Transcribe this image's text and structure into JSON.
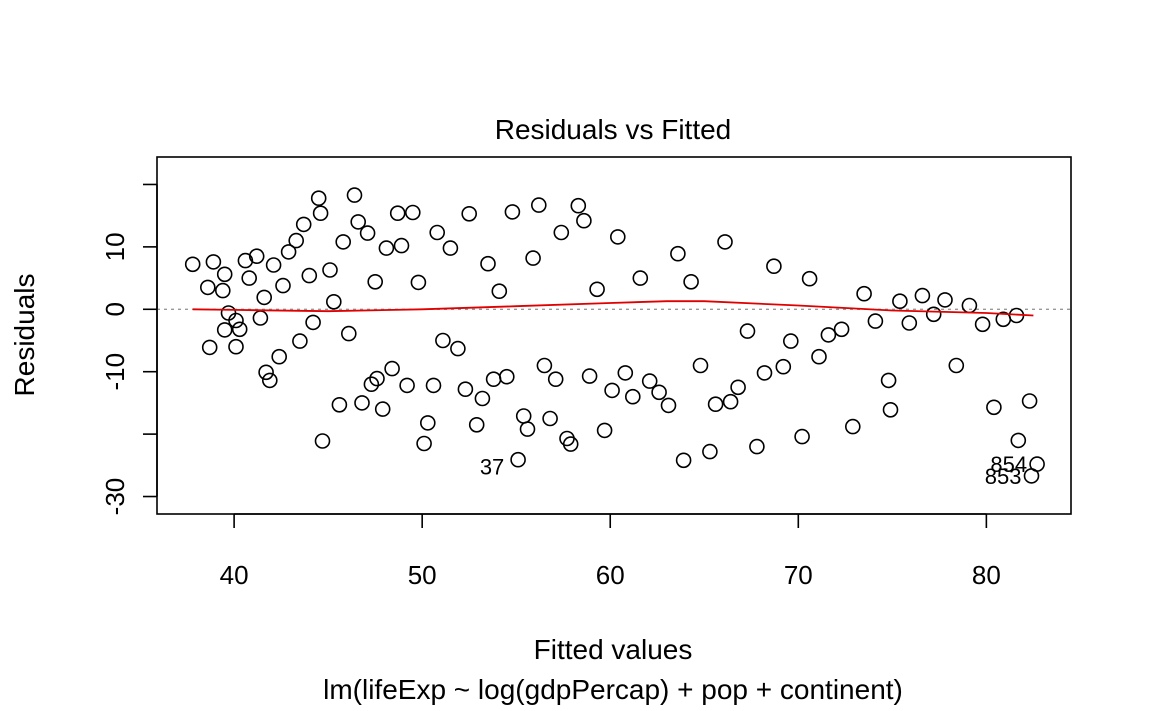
{
  "chart_data": {
    "type": "scatter",
    "title": "Residuals vs Fitted",
    "xlabel": "Fitted values",
    "ylabel": "Residuals",
    "subtitle": "lm(lifeExp ~ log(gdpPercap) + pop + continent)",
    "xlim": [
      35.9,
      84.5
    ],
    "ylim": [
      -32.8,
      24.4
    ],
    "x_ticks": [
      40,
      50,
      60,
      70,
      80
    ],
    "y_ticks": [
      -30,
      -20,
      -10,
      0,
      10,
      20
    ],
    "y_tick_labels": [
      "-30",
      "",
      "-10",
      "0",
      "10",
      ""
    ],
    "reference_line": {
      "y": 0,
      "style": "dotted",
      "color": "#999999"
    },
    "smooth_line": {
      "color": "#e00000",
      "points": [
        [
          37.8,
          0.0
        ],
        [
          40,
          -0.1
        ],
        [
          45,
          -0.3
        ],
        [
          50,
          0.0
        ],
        [
          55,
          0.5
        ],
        [
          60,
          1.0
        ],
        [
          63,
          1.3
        ],
        [
          65,
          1.3
        ],
        [
          70,
          0.6
        ],
        [
          75,
          -0.2
        ],
        [
          80,
          -0.6
        ],
        [
          82.5,
          -1.0
        ]
      ]
    },
    "labeled_points": [
      {
        "label": "37",
        "x": 54.9,
        "y": -25.2
      },
      {
        "label": "854",
        "x": 82.7,
        "y": -24.8
      },
      {
        "label": "853",
        "x": 82.4,
        "y": -26.7
      }
    ],
    "series": [
      {
        "points": [
          [
            37.8,
            7.2
          ],
          [
            38.6,
            3.5
          ],
          [
            38.7,
            -6.1
          ],
          [
            38.9,
            7.6
          ],
          [
            39.4,
            3.0
          ],
          [
            39.5,
            5.6
          ],
          [
            39.5,
            -3.3
          ],
          [
            39.7,
            -0.6
          ],
          [
            40.1,
            -1.8
          ],
          [
            40.1,
            -6.0
          ],
          [
            40.3,
            -3.2
          ],
          [
            40.6,
            7.8
          ],
          [
            40.8,
            5.0
          ],
          [
            41.2,
            8.5
          ],
          [
            41.4,
            -1.4
          ],
          [
            41.6,
            1.9
          ],
          [
            41.7,
            -10.1
          ],
          [
            41.9,
            -11.4
          ],
          [
            42.1,
            7.1
          ],
          [
            42.4,
            -7.6
          ],
          [
            42.6,
            3.8
          ],
          [
            42.9,
            9.2
          ],
          [
            43.3,
            11.0
          ],
          [
            43.5,
            -5.1
          ],
          [
            43.7,
            13.6
          ],
          [
            44.0,
            5.4
          ],
          [
            44.2,
            -2.1
          ],
          [
            44.5,
            17.8
          ],
          [
            44.6,
            15.4
          ],
          [
            44.7,
            -21.1
          ],
          [
            45.1,
            6.3
          ],
          [
            45.3,
            1.2
          ],
          [
            45.6,
            -15.3
          ],
          [
            45.8,
            10.8
          ],
          [
            46.1,
            -3.9
          ],
          [
            46.4,
            18.3
          ],
          [
            46.6,
            14.0
          ],
          [
            46.8,
            -15.0
          ],
          [
            47.1,
            12.2
          ],
          [
            47.3,
            -12.0
          ],
          [
            47.5,
            4.4
          ],
          [
            47.6,
            -11.1
          ],
          [
            47.9,
            -16.0
          ],
          [
            48.1,
            9.8
          ],
          [
            48.4,
            -9.5
          ],
          [
            48.7,
            15.4
          ],
          [
            48.9,
            10.2
          ],
          [
            49.2,
            -12.2
          ],
          [
            49.5,
            15.5
          ],
          [
            49.8,
            4.3
          ],
          [
            50.1,
            -21.5
          ],
          [
            50.3,
            -18.2
          ],
          [
            50.6,
            -12.2
          ],
          [
            50.8,
            12.3
          ],
          [
            51.1,
            -5.0
          ],
          [
            51.5,
            9.8
          ],
          [
            51.9,
            -6.3
          ],
          [
            52.3,
            -12.8
          ],
          [
            52.5,
            15.3
          ],
          [
            52.9,
            -18.5
          ],
          [
            53.2,
            -14.3
          ],
          [
            53.5,
            7.3
          ],
          [
            53.8,
            -11.2
          ],
          [
            54.1,
            2.9
          ],
          [
            54.5,
            -10.8
          ],
          [
            54.8,
            15.6
          ],
          [
            55.1,
            -24.1
          ],
          [
            55.4,
            -17.1
          ],
          [
            55.6,
            -19.2
          ],
          [
            55.9,
            8.2
          ],
          [
            56.2,
            16.7
          ],
          [
            56.5,
            -9.0
          ],
          [
            56.8,
            -17.5
          ],
          [
            57.1,
            -11.2
          ],
          [
            57.4,
            12.3
          ],
          [
            57.7,
            -20.7
          ],
          [
            57.9,
            -21.6
          ],
          [
            58.3,
            16.6
          ],
          [
            58.6,
            14.2
          ],
          [
            58.9,
            -10.7
          ],
          [
            59.3,
            3.2
          ],
          [
            59.7,
            -19.4
          ],
          [
            60.1,
            -13.0
          ],
          [
            60.4,
            11.6
          ],
          [
            60.8,
            -10.2
          ],
          [
            61.2,
            -14.0
          ],
          [
            61.6,
            5.0
          ],
          [
            62.1,
            -11.5
          ],
          [
            62.6,
            -13.3
          ],
          [
            63.1,
            -15.4
          ],
          [
            63.6,
            8.9
          ],
          [
            63.9,
            -24.2
          ],
          [
            64.3,
            4.4
          ],
          [
            64.8,
            -9.0
          ],
          [
            65.3,
            -22.8
          ],
          [
            65.6,
            -15.2
          ],
          [
            66.1,
            10.8
          ],
          [
            66.4,
            -14.8
          ],
          [
            66.8,
            -12.5
          ],
          [
            67.3,
            -3.5
          ],
          [
            67.8,
            -22.0
          ],
          [
            68.2,
            -10.2
          ],
          [
            68.7,
            6.9
          ],
          [
            69.2,
            -9.2
          ],
          [
            69.6,
            -5.1
          ],
          [
            70.2,
            -20.4
          ],
          [
            70.6,
            4.9
          ],
          [
            71.1,
            -7.6
          ],
          [
            71.6,
            -4.1
          ],
          [
            72.3,
            -3.2
          ],
          [
            72.9,
            -18.8
          ],
          [
            73.5,
            2.5
          ],
          [
            74.1,
            -1.9
          ],
          [
            74.8,
            -11.4
          ],
          [
            74.9,
            -16.1
          ],
          [
            75.4,
            1.3
          ],
          [
            75.9,
            -2.2
          ],
          [
            76.6,
            2.2
          ],
          [
            77.2,
            -0.8
          ],
          [
            77.8,
            1.5
          ],
          [
            78.4,
            -9.0
          ],
          [
            79.1,
            0.6
          ],
          [
            79.8,
            -2.4
          ],
          [
            80.4,
            -15.7
          ],
          [
            80.9,
            -1.6
          ],
          [
            81.6,
            -1.0
          ],
          [
            81.7,
            -21.0
          ],
          [
            82.3,
            -14.7
          ],
          [
            82.4,
            -26.7
          ],
          [
            82.7,
            -24.8
          ]
        ]
      }
    ]
  }
}
